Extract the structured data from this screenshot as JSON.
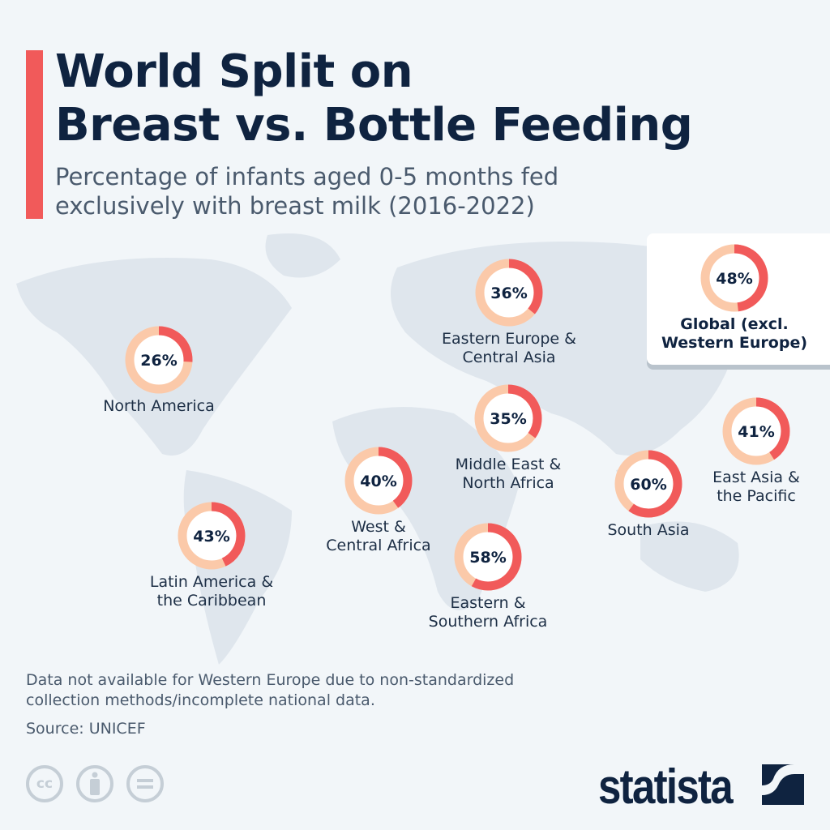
{
  "header": {
    "title_line1": "World Split on",
    "title_line2": "Breast vs. Bottle Feeding",
    "subtitle": "Percentage of infants aged 0-5 months fed exclusively with breast milk (2016-2022)"
  },
  "chart_data": {
    "type": "pie",
    "subtype": "donut-map",
    "unit": "%",
    "colors": {
      "value": "#f15a5a",
      "remainder": "#fbc9a9"
    },
    "items": [
      {
        "region": "Global (excl. Western Europe)",
        "label_lines": [
          "Global (excl.",
          "Western Europe)"
        ],
        "value": 48,
        "display": "48%"
      },
      {
        "region": "North America",
        "label_lines": [
          "North America"
        ],
        "value": 26,
        "display": "26%"
      },
      {
        "region": "Eastern Europe & Central Asia",
        "label_lines": [
          "Eastern Europe &",
          "Central Asia"
        ],
        "value": 36,
        "display": "36%"
      },
      {
        "region": "Middle East & North Africa",
        "label_lines": [
          "Middle East &",
          "North Africa"
        ],
        "value": 35,
        "display": "35%"
      },
      {
        "region": "West & Central Africa",
        "label_lines": [
          "West &",
          "Central Africa"
        ],
        "value": 40,
        "display": "40%"
      },
      {
        "region": "Latin America & the Caribbean",
        "label_lines": [
          "Latin America &",
          "the Caribbean"
        ],
        "value": 43,
        "display": "43%"
      },
      {
        "region": "Eastern & Southern Africa",
        "label_lines": [
          "Eastern &",
          "Southern Africa"
        ],
        "value": 58,
        "display": "58%"
      },
      {
        "region": "South Asia",
        "label_lines": [
          "South Asia"
        ],
        "value": 60,
        "display": "60%"
      },
      {
        "region": "East Asia & the Pacific",
        "label_lines": [
          "East Asia &",
          "the Pacific"
        ],
        "value": 41,
        "display": "41%"
      }
    ]
  },
  "footer": {
    "note_line1": "Data not available for Western Europe due to non-standardized",
    "note_line2": "collection methods/incomplete national data.",
    "source": "Source: UNICEF",
    "license_icons": [
      "cc-icon",
      "attribution-icon",
      "no-derivatives-icon"
    ],
    "brand": "statista"
  }
}
